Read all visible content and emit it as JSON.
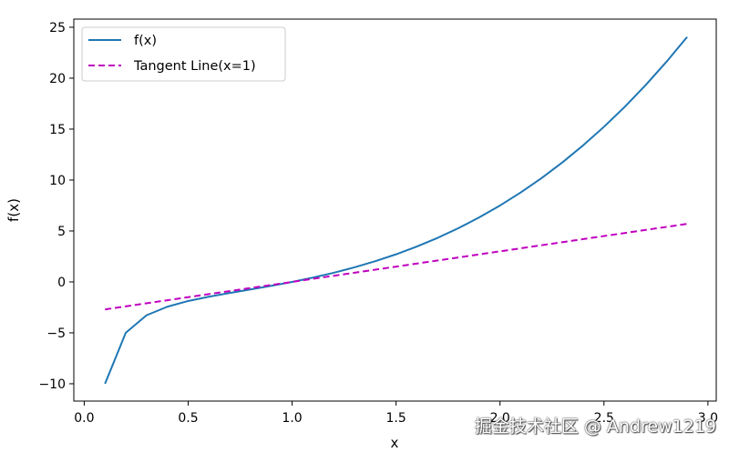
{
  "chart_data": {
    "type": "line",
    "xlabel": "x",
    "ylabel": "f(x)",
    "xlim": [
      -0.05,
      3.04
    ],
    "ylim": [
      -11.7,
      25.8
    ],
    "xticks": [
      "0.0",
      "0.5",
      "1.0",
      "1.5",
      "2.0",
      "2.5",
      "3.0"
    ],
    "yticks": [
      "25",
      "20",
      "15",
      "10",
      "5",
      "0",
      "−5",
      "−10"
    ],
    "legend_position": "top-left",
    "series": [
      {
        "name": "f(x)",
        "color": "#1f77b4",
        "style": "solid",
        "x": [
          0.1,
          0.2,
          0.3,
          0.4,
          0.5,
          0.6,
          0.7,
          0.8,
          0.9,
          1.0,
          1.1,
          1.2,
          1.3,
          1.4,
          1.5,
          1.6,
          1.7,
          1.8,
          1.9,
          2.0,
          2.1,
          2.2,
          2.3,
          2.4,
          2.5,
          2.6,
          2.7,
          2.8,
          2.9
        ],
        "y": [
          -9.999,
          -4.992,
          -3.273,
          -2.436,
          -1.875,
          -1.451,
          -1.086,
          -0.738,
          -0.382,
          0.0,
          0.422,
          0.895,
          1.428,
          2.03,
          2.708,
          3.471,
          4.325,
          5.276,
          6.333,
          7.5,
          8.785,
          10.194,
          11.732,
          13.407,
          15.225,
          17.192,
          19.313,
          21.595,
          24.044
        ]
      },
      {
        "name": "Tangent Line(x=1)",
        "color": "#bf00bf",
        "style": "dashed",
        "x": [
          0.1,
          2.9
        ],
        "y": [
          -2.7,
          5.7
        ]
      }
    ]
  },
  "watermark": "掘金技术社区 @ Andrew1219"
}
